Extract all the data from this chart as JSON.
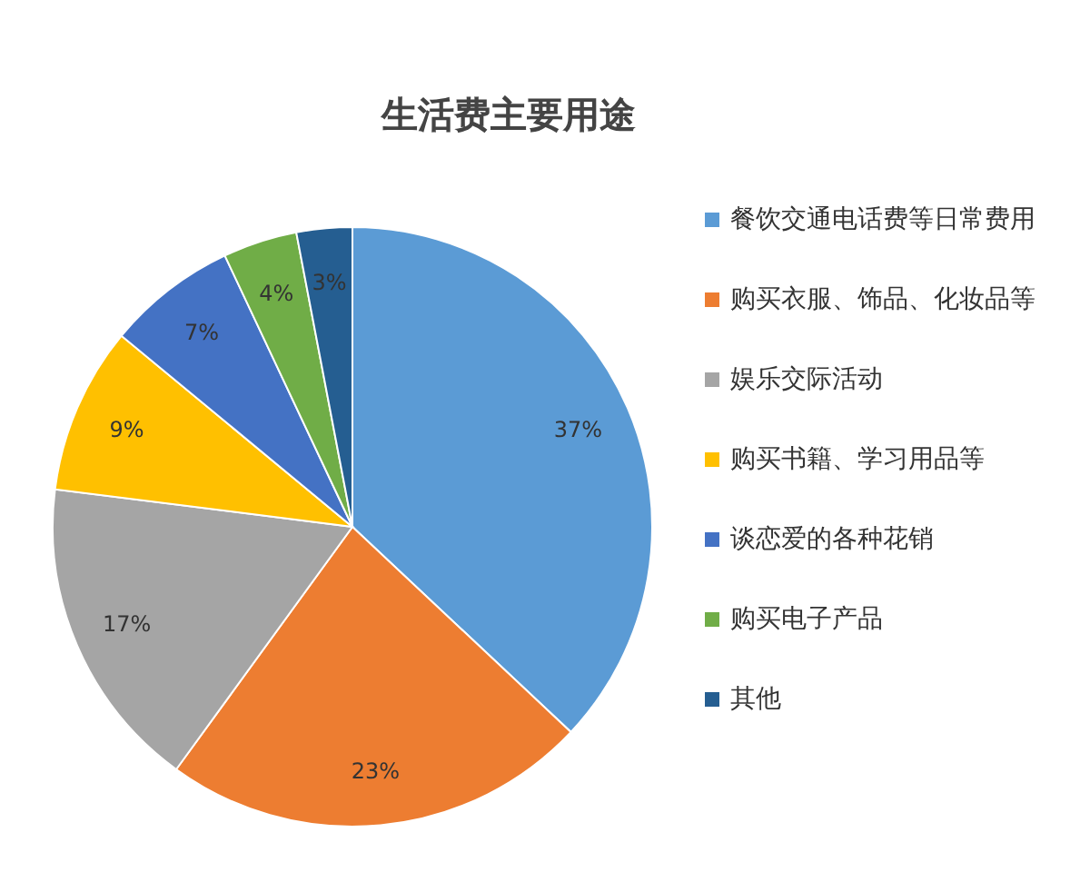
{
  "chart_data": {
    "type": "pie",
    "title": "生活费主要用途",
    "categories": [
      "餐饮交通电话费等日常费用",
      "购买衣服、饰品、化妆品等",
      "娱乐交际活动",
      "购买书籍、学习用品等",
      "谈恋爱的各种花销",
      "购买电子产品",
      "其他"
    ],
    "values": [
      37,
      23,
      17,
      9,
      7,
      4,
      3
    ],
    "colors": [
      "#5b9bd5",
      "#ed7d31",
      "#a5a5a5",
      "#ffc000",
      "#4472c4",
      "#70ad47",
      "#255e91"
    ],
    "value_labels": [
      "37%",
      "23%",
      "17%",
      "9%",
      "7%",
      "4%",
      "3%"
    ],
    "legend": "right"
  }
}
